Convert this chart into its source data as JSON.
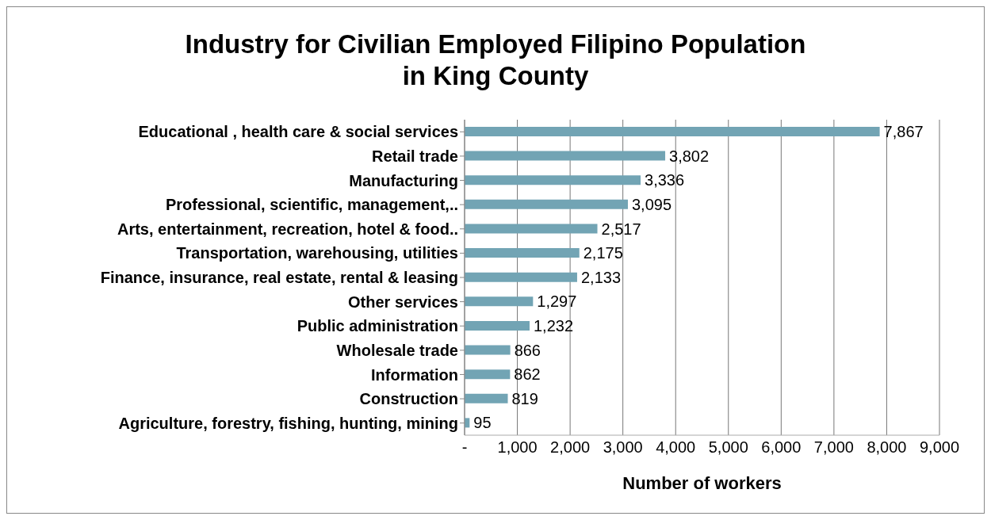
{
  "chart_data": {
    "type": "bar",
    "orientation": "horizontal",
    "title": "Industry for Civilian Employed Filipino Population\nin King County",
    "xlabel": "Number of workers",
    "categories": [
      "Educational , health care & social services",
      "Retail trade",
      "Manufacturing",
      "Professional, scientific, management,..",
      "Arts, entertainment, recreation, hotel & food..",
      "Transportation, warehousing, utilities",
      "Finance, insurance, real estate, rental & leasing",
      "Other services",
      "Public administration",
      "Wholesale trade",
      "Information",
      "Construction",
      "Agriculture, forestry, fishing, hunting, mining"
    ],
    "values": [
      7867,
      3802,
      3336,
      3095,
      2517,
      2175,
      2133,
      1297,
      1232,
      866,
      862,
      819,
      95
    ],
    "value_labels": [
      "7,867",
      "3,802",
      "3,336",
      "3,095",
      "2,517",
      "2,175",
      "2,133",
      "1,297",
      "1,232",
      "866",
      "862",
      "819",
      "95"
    ],
    "color": "#72a4b4",
    "xlim": [
      0,
      9000
    ],
    "xticks": [
      {
        "value": 0,
        "label": "-"
      },
      {
        "value": 1000,
        "label": "1,000"
      },
      {
        "value": 2000,
        "label": "2,000"
      },
      {
        "value": 3000,
        "label": "3,000"
      },
      {
        "value": 4000,
        "label": "4,000"
      },
      {
        "value": 5000,
        "label": "5,000"
      },
      {
        "value": 6000,
        "label": "6,000"
      },
      {
        "value": 7000,
        "label": "7,000"
      },
      {
        "value": 8000,
        "label": "8,000"
      },
      {
        "value": 9000,
        "label": "9,000"
      }
    ],
    "grid": "x"
  }
}
